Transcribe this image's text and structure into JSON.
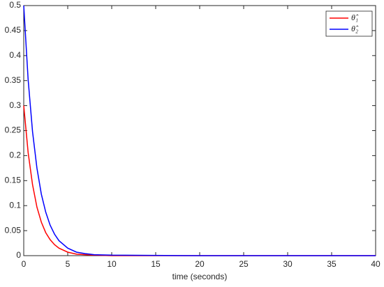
{
  "chart_data": {
    "type": "line",
    "xlabel": "time (seconds)",
    "x": [
      0,
      0.5,
      1,
      1.5,
      2,
      2.5,
      3,
      3.5,
      4,
      5,
      6,
      7,
      8,
      10,
      20,
      30,
      40
    ],
    "series": [
      {
        "name": "θ̂₁",
        "color": "#ff0000",
        "values": [
          0.3,
          0.206,
          0.142,
          0.097,
          0.067,
          0.046,
          0.032,
          0.022,
          0.015,
          0.007,
          0.003,
          0.002,
          0.001,
          0,
          0,
          0,
          0
        ]
      },
      {
        "name": "θ̂₂",
        "color": "#0000ff",
        "values": [
          0.5,
          0.352,
          0.248,
          0.175,
          0.123,
          0.087,
          0.061,
          0.043,
          0.03,
          0.015,
          0.007,
          0.004,
          0.002,
          0.001,
          0,
          0,
          0
        ]
      }
    ],
    "xlim": [
      0,
      40
    ],
    "xticks": [
      0,
      5,
      10,
      15,
      20,
      25,
      30,
      35,
      40
    ],
    "ylim": [
      0,
      0.5
    ],
    "yticks": [
      0,
      0.05,
      0.1,
      0.15,
      0.2,
      0.25,
      0.3,
      0.35,
      0.4,
      0.45,
      0.5
    ],
    "grid": false,
    "legend": "top-right"
  }
}
